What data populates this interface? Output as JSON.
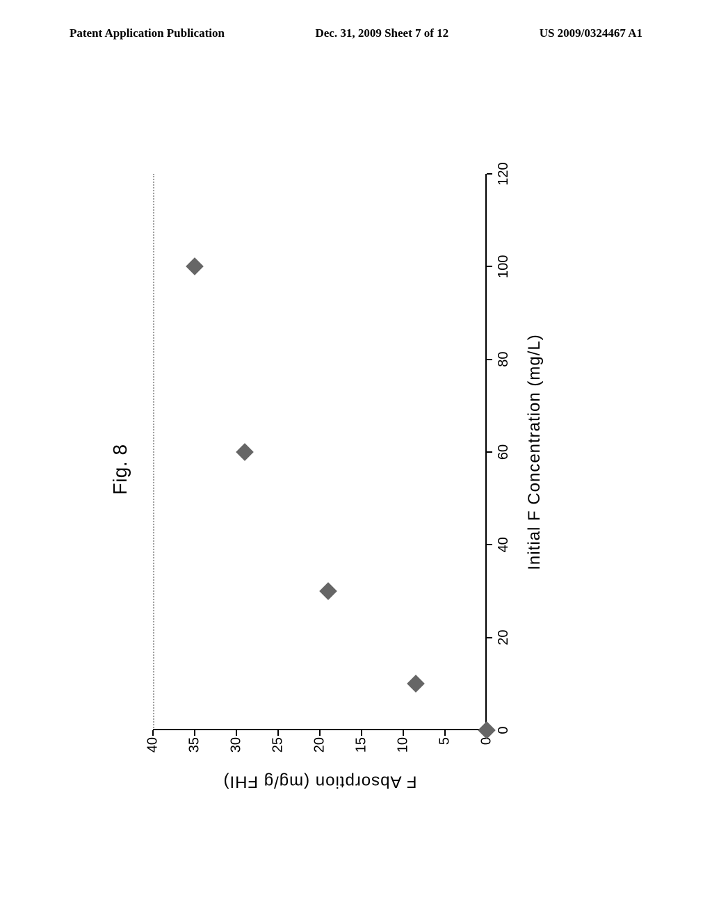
{
  "header": {
    "left": "Patent Application Publication",
    "center": "Dec. 31, 2009  Sheet 7 of 12",
    "right": "US 2009/0324467 A1"
  },
  "figure": {
    "title": "Fig. 8",
    "type": "scatter",
    "xlabel": "Initial  F  Concentration  (mg/L)",
    "ylabel": "F  Absorption  (mg/g   FHI)",
    "xlim": [
      0,
      120
    ],
    "ylim": [
      0,
      40
    ],
    "xtick_step": 20,
    "ytick_step": 5,
    "xticks": [
      0,
      20,
      40,
      60,
      80,
      100,
      120
    ],
    "yticks": [
      0,
      5,
      10,
      15,
      20,
      25,
      30,
      35,
      40
    ],
    "axis_color": "#000000",
    "top_border_color": "#a0a0a0",
    "background_color": "#ffffff",
    "tick_fontsize": 20,
    "label_fontsize": 24,
    "title_fontsize": 28,
    "marker_style": "diamond",
    "marker_size": 18,
    "marker_fill": "#666666",
    "data": [
      {
        "x": 0,
        "y": 0
      },
      {
        "x": 10,
        "y": 8.5
      },
      {
        "x": 30,
        "y": 19
      },
      {
        "x": 60,
        "y": 29
      },
      {
        "x": 100,
        "y": 35
      }
    ]
  }
}
